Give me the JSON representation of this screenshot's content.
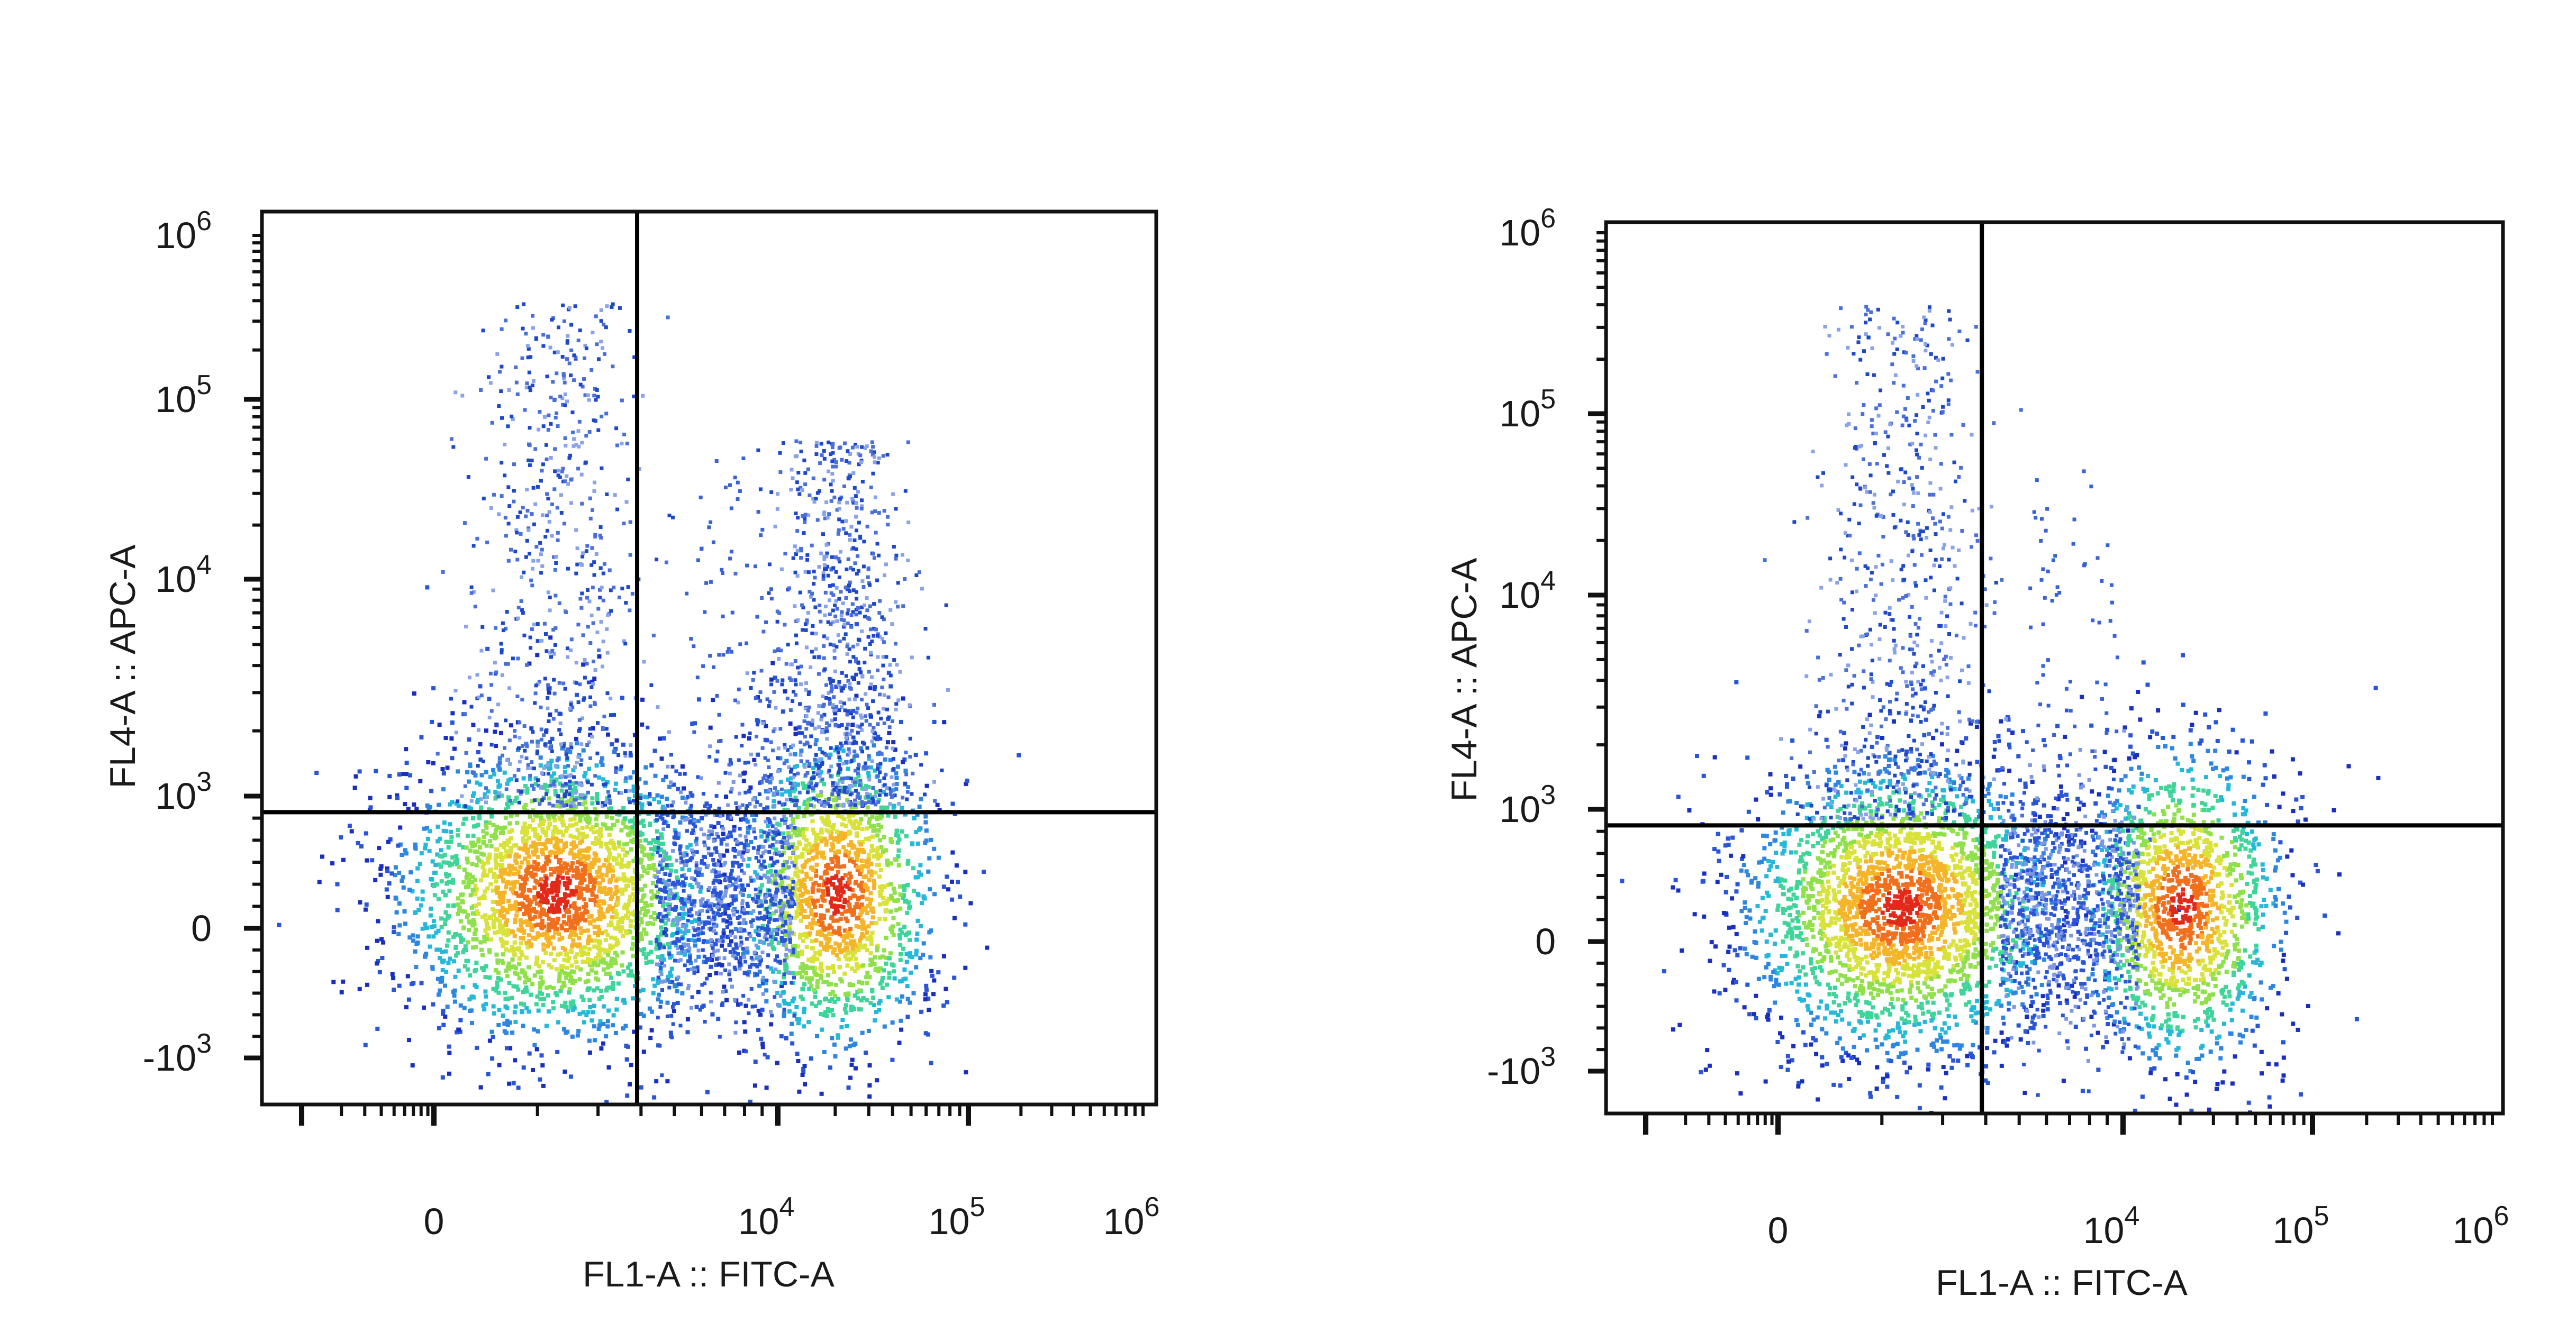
{
  "chart_data": [
    {
      "type": "scatter",
      "xlabel": "FL1-A :: FITC-A",
      "ylabel": "FL4-A :: APC-A",
      "x_ticks": [
        {
          "value": 0,
          "base": "0"
        },
        {
          "value": 10000,
          "base": "10",
          "exp": "4"
        },
        {
          "value": 100000,
          "base": "10",
          "exp": "5"
        },
        {
          "value": 1000000,
          "base": "10",
          "exp": "6"
        }
      ],
      "y_ticks": [
        {
          "value": -1000,
          "base": "-10",
          "exp": "3"
        },
        {
          "value": 0,
          "base": "0"
        },
        {
          "value": 1000,
          "base": "10",
          "exp": "3"
        },
        {
          "value": 10000,
          "base": "10",
          "exp": "4"
        },
        {
          "value": 100000,
          "base": "10",
          "exp": "5"
        },
        {
          "value": 1000000,
          "base": "10",
          "exp": "6"
        }
      ],
      "gate": {
        "x": 900,
        "y": 640
      },
      "populations": [
        {
          "name": "FITC- APC-",
          "x": 200,
          "y": 50,
          "color": "#e8271a"
        },
        {
          "name": "FITC+ APC-",
          "x": 20000,
          "y": 50,
          "color": "#7fdc37"
        },
        {
          "name": "FITC+ APC+",
          "x": 20000,
          "y": 15000,
          "color": "#1f48c8"
        },
        {
          "name": "FITC- APC+",
          "x": 200,
          "y": 5000,
          "color": "#5a78d8"
        }
      ]
    },
    {
      "type": "scatter",
      "xlabel": "FL1-A :: FITC-A",
      "ylabel": "FL4-A :: APC-A",
      "x_ticks": [
        {
          "value": 0,
          "base": "0"
        },
        {
          "value": 10000,
          "base": "10",
          "exp": "4"
        },
        {
          "value": 100000,
          "base": "10",
          "exp": "5"
        },
        {
          "value": 1000000,
          "base": "10",
          "exp": "6"
        }
      ],
      "y_ticks": [
        {
          "value": -1000,
          "base": "-10",
          "exp": "3"
        },
        {
          "value": 0,
          "base": "0"
        },
        {
          "value": 1000,
          "base": "10",
          "exp": "3"
        },
        {
          "value": 10000,
          "base": "10",
          "exp": "4"
        },
        {
          "value": 100000,
          "base": "10",
          "exp": "5"
        },
        {
          "value": 1000000,
          "base": "10",
          "exp": "6"
        }
      ],
      "gate": {
        "x": 900,
        "y": 640
      },
      "populations": [
        {
          "name": "FITC- APC-",
          "x": 200,
          "y": 50,
          "color": "#e8271a"
        },
        {
          "name": "FITC+ APC-",
          "x": 20000,
          "y": 50,
          "color": "#7fdc37"
        },
        {
          "name": "FITC- APC+",
          "x": 200,
          "y": 5000,
          "color": "#1f48c8"
        }
      ]
    }
  ]
}
